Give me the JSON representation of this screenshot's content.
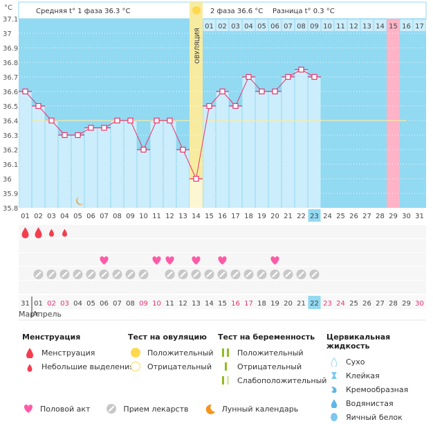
{
  "header": {
    "unit": "°C",
    "phase1": "Средняя t° 1 фаза 36.3 °C",
    "phase2": "2 фаза 36.6 °C",
    "diff": "Разница t° 0.3 °C",
    "ovulation_label": "ОВУЛЯЦИЯ"
  },
  "chart_data": {
    "type": "bar",
    "title": "",
    "xlabel": "",
    "ylabel": "°C",
    "ylim": [
      35.8,
      37.1
    ],
    "yticks": [
      "37.1",
      "37",
      "36.9",
      "36.8",
      "36.7",
      "36.6",
      "36.5",
      "36.4",
      "36.3",
      "36.2",
      "36.1",
      "36",
      "35.9",
      "35.8"
    ],
    "cycle_days": [
      "01",
      "02",
      "03",
      "04",
      "05",
      "06",
      "07",
      "08",
      "09",
      "10",
      "11",
      "12",
      "13",
      "14",
      "15",
      "16",
      "17",
      "18",
      "19",
      "20",
      "21",
      "22",
      "23",
      "24",
      "25",
      "26",
      "27",
      "28",
      "29",
      "30",
      "31"
    ],
    "temperatures": [
      36.6,
      36.5,
      36.4,
      36.3,
      36.3,
      36.35,
      36.35,
      36.4,
      36.4,
      36.2,
      36.4,
      36.4,
      36.2,
      36.0,
      36.5,
      36.6,
      36.5,
      36.7,
      36.6,
      36.6,
      36.7,
      36.75,
      36.7
    ],
    "coverline": 36.4,
    "ovulation_day": 14,
    "today_cycle_day": 23,
    "post_ovulation_labels": [
      "01",
      "02",
      "03",
      "04",
      "05",
      "06",
      "07",
      "08",
      "09",
      "10",
      "11",
      "12",
      "13",
      "14",
      "15",
      "16",
      "17"
    ],
    "expected_period_day": 29,
    "moon_day": 5,
    "menstruation": [
      {
        "day": 1,
        "type": "heavy"
      },
      {
        "day": 2,
        "type": "heavy"
      },
      {
        "day": 3,
        "type": "light"
      },
      {
        "day": 4,
        "type": "light"
      }
    ],
    "intercourse_days": [
      7,
      11,
      12,
      14,
      16,
      20
    ],
    "medication_days": [
      2,
      3,
      4,
      5,
      6,
      7,
      8,
      9,
      10,
      12,
      13,
      14,
      15,
      16,
      17,
      18,
      19,
      20,
      21,
      22,
      23
    ],
    "calendar_dates": [
      "31",
      "01",
      "02",
      "03",
      "04",
      "05",
      "06",
      "07",
      "08",
      "09",
      "10",
      "11",
      "12",
      "13",
      "14",
      "15",
      "16",
      "17",
      "18",
      "19",
      "20",
      "21",
      "22",
      "23",
      "24",
      "25",
      "26",
      "27",
      "28",
      "29",
      "30"
    ],
    "calendar_weekend_idx": [
      2,
      3,
      9,
      10,
      16,
      17,
      23,
      24,
      30
    ],
    "today_calendar_idx": 22,
    "months": [
      "Март",
      "Апрель"
    ]
  },
  "colors": {
    "bg_blue": "#92d9f2",
    "bar": "#ccedfb",
    "line": "#e8336b",
    "ovulation": "#f7eba0",
    "period": "#ffb3c6",
    "weekend": "#e8336b",
    "coverline": "#f5eca5"
  },
  "legend": {
    "menstruation": {
      "title": "Менструация",
      "items": [
        "Менструация",
        "Небольшие выделения"
      ]
    },
    "ovulation_test": {
      "title": "Тест на овуляцию",
      "items": [
        "Положительный",
        "Отрицательный"
      ]
    },
    "pregnancy_test": {
      "title": "Тест на беременность",
      "items": [
        "Положительный",
        "Отрицательный",
        "Слабоположительный"
      ]
    },
    "cervical": {
      "title": "Цервикальная жидкость",
      "items": [
        "Сухо",
        "Клейкая",
        "Кремообразная",
        "Водянистая",
        "Яичный белок"
      ]
    },
    "other": [
      "Половой акт",
      "Прием лекарств",
      "Лунный календарь"
    ]
  }
}
